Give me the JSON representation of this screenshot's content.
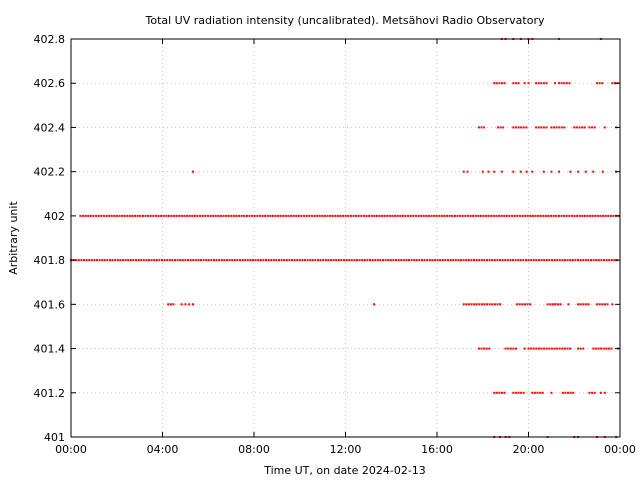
{
  "chart_data": {
    "type": "scatter",
    "title": "Total UV radiation intensity (uncalibrated). Metsähovi Radio Observatory",
    "xlabel": "Time UT, on date 2024-02-13",
    "ylabel": "Arbitrary unit",
    "xlim": [
      "00:00",
      "24:00"
    ],
    "ylim": [
      401,
      402.8
    ],
    "x_ticks": [
      "00:00",
      "04:00",
      "08:00",
      "12:00",
      "16:00",
      "20:00",
      "00:00"
    ],
    "y_ticks": [
      "401",
      "401.2",
      "401.4",
      "401.6",
      "401.8",
      "402",
      "402.2",
      "402.4",
      "402.6",
      "402.8"
    ],
    "grid": true,
    "marker_color": "#ff0000",
    "series": [
      {
        "points_description": "dense horizontal band",
        "y": 401.8,
        "x_ranges": [
          [
            "00:00",
            "24:00"
          ]
        ]
      },
      {
        "y": 402.0,
        "x_ranges": [
          [
            "00:25",
            "24:00"
          ]
        ]
      },
      {
        "y": 402.2,
        "x_points": [
          "05:20",
          "17:10",
          "17:20",
          "18:00",
          "18:15",
          "18:30",
          "18:50",
          "19:20",
          "19:40",
          "19:55",
          "20:10",
          "20:40",
          "21:00",
          "21:20",
          "21:50",
          "22:10",
          "22:30",
          "22:50",
          "23:15",
          "23:50"
        ]
      },
      {
        "y": 401.6,
        "x_ranges": [
          [
            "04:15",
            "04:30"
          ],
          [
            "17:10",
            "18:50"
          ],
          [
            "19:30",
            "20:10"
          ],
          [
            "20:50",
            "21:30"
          ],
          [
            "22:10",
            "22:40"
          ],
          [
            "23:00",
            "23:30"
          ]
        ],
        "x_points": [
          "04:50",
          "05:00",
          "05:10",
          "05:20",
          "13:15",
          "21:10",
          "21:45",
          "23:40"
        ]
      },
      {
        "y": 402.4,
        "x_ranges": [
          [
            "17:50",
            "18:10"
          ],
          [
            "18:40",
            "18:55"
          ],
          [
            "19:20",
            "20:00"
          ],
          [
            "20:20",
            "20:50"
          ],
          [
            "21:00",
            "21:40"
          ],
          [
            "22:00",
            "22:30"
          ],
          [
            "22:40",
            "23:00"
          ]
        ],
        "x_points": [
          "23:20",
          "23:50"
        ]
      },
      {
        "y": 402.6,
        "x_ranges": [
          [
            "18:30",
            "19:00"
          ],
          [
            "19:20",
            "19:40"
          ],
          [
            "20:20",
            "20:50"
          ],
          [
            "21:20",
            "21:50"
          ],
          [
            "23:00",
            "23:20"
          ],
          [
            "23:40",
            "23:55"
          ]
        ],
        "x_points": [
          "19:50",
          "20:00",
          "21:10"
        ]
      },
      {
        "y": 401.4,
        "x_ranges": [
          [
            "17:50",
            "18:20"
          ],
          [
            "19:00",
            "19:30"
          ],
          [
            "20:00",
            "21:50"
          ],
          [
            "22:10",
            "22:30"
          ],
          [
            "22:50",
            "23:40"
          ]
        ],
        "x_points": [
          "19:50",
          "23:55"
        ]
      },
      {
        "y": 401.2,
        "x_ranges": [
          [
            "18:30",
            "19:00"
          ],
          [
            "19:20",
            "19:50"
          ],
          [
            "20:10",
            "20:40"
          ],
          [
            "21:30",
            "22:00"
          ],
          [
            "22:40",
            "23:00"
          ]
        ],
        "x_points": [
          "21:00",
          "23:10",
          "23:20"
        ]
      },
      {
        "y": 402.8,
        "x_points": [
          "18:50",
          "19:00",
          "19:20",
          "19:40",
          "20:00",
          "20:10",
          "21:20",
          "23:10"
        ]
      },
      {
        "y": 401.0,
        "x_points": [
          "18:30",
          "18:45",
          "19:00",
          "19:10",
          "20:50",
          "22:00",
          "22:10",
          "23:00",
          "23:20",
          "23:50"
        ]
      }
    ]
  }
}
